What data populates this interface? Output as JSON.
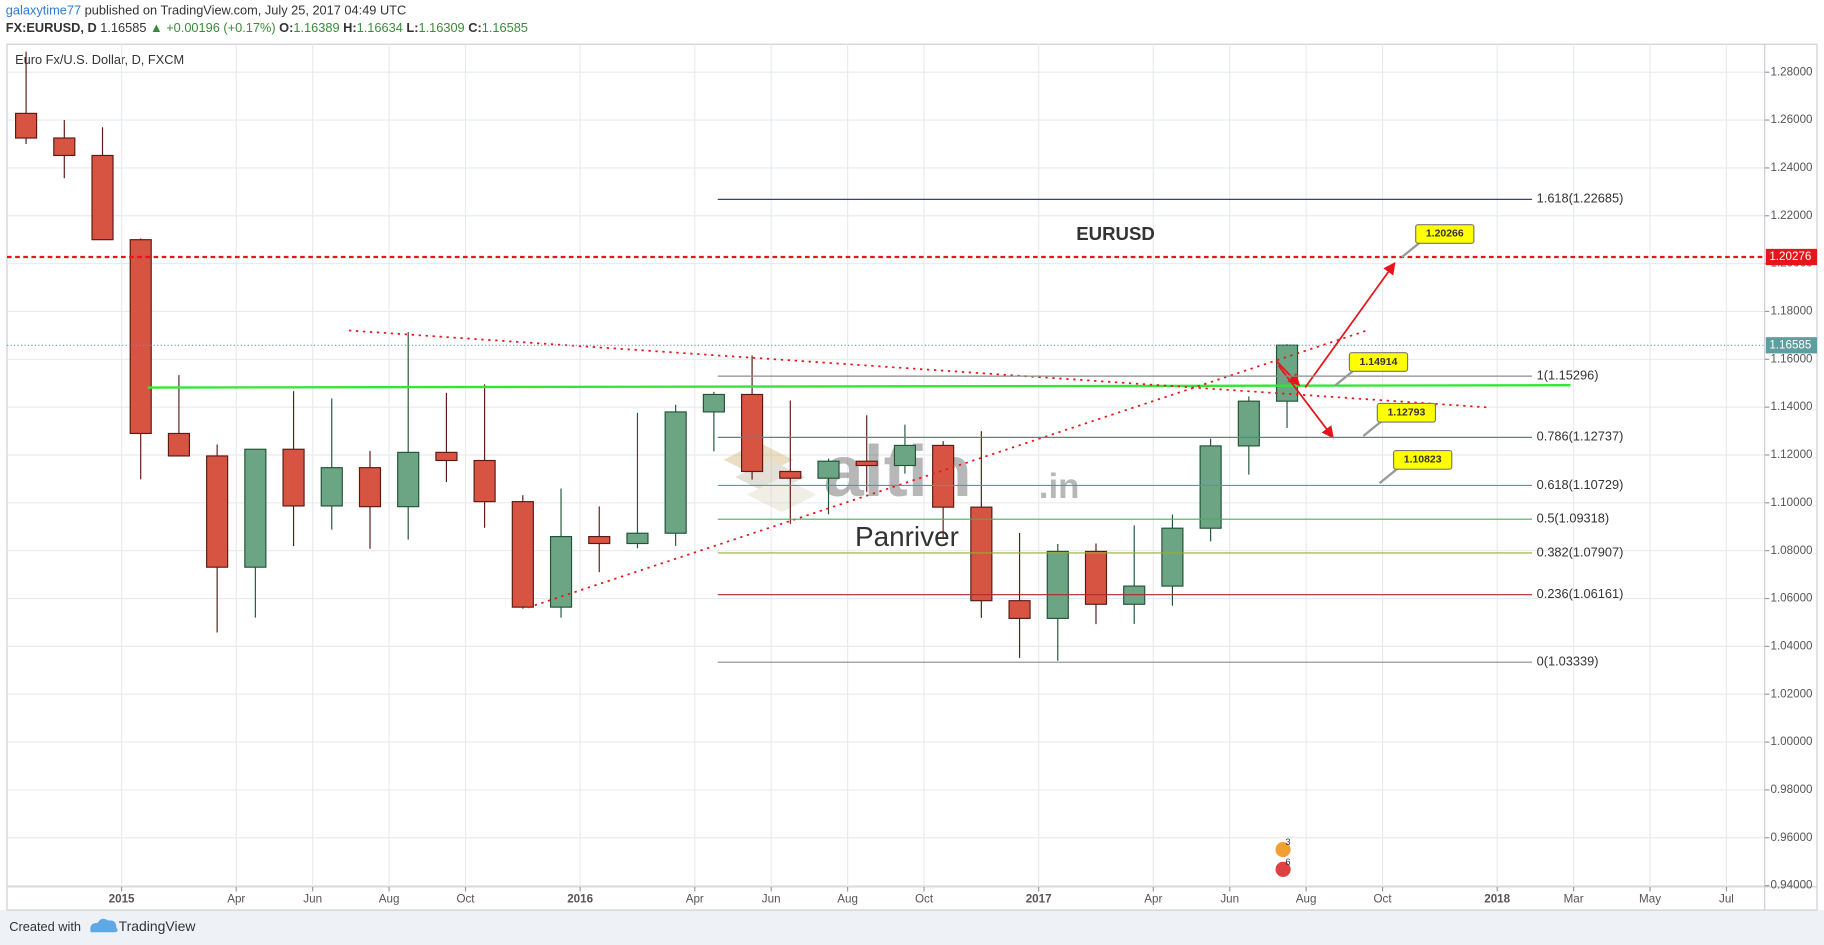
{
  "header": {
    "author": "galaxytime77",
    "published": "published on TradingView.com, July 25, 2017 04:49 UTC",
    "symbol": "FX:EURUSD, D",
    "last": "1.16585",
    "change": "▲ +0.00196 (+0.17%)",
    "ohlc": [
      {
        "key": "O:",
        "value": "1.16389"
      },
      {
        "key": "H:",
        "value": "1.16634"
      },
      {
        "key": "L:",
        "value": "1.16309"
      },
      {
        "key": "C:",
        "value": "1.16585"
      }
    ]
  },
  "chart_data": {
    "type": "candlestick",
    "title": "EURUSD",
    "instrument": "Euro Fx/U.S. Dollar, D, FXCM",
    "x": [
      "2014-10",
      "2014-11",
      "2014-12",
      "2015-01",
      "2015-02",
      "2015-03",
      "2015-04",
      "2015-05",
      "2015-06",
      "2015-07",
      "2015-08",
      "2015-09",
      "2015-10",
      "2015-11",
      "2015-12",
      "2016-01",
      "2016-02",
      "2016-03",
      "2016-04",
      "2016-05",
      "2016-06",
      "2016-07",
      "2016-08",
      "2016-09",
      "2016-10",
      "2016-11",
      "2016-12",
      "2017-01",
      "2017-02",
      "2017-03",
      "2017-04",
      "2017-05",
      "2017-06",
      "2017-07"
    ],
    "open": [
      1.2628,
      1.2525,
      1.2452,
      1.21,
      1.129,
      1.1196,
      1.0731,
      1.1224,
      1.0987,
      1.1147,
      1.0984,
      1.1211,
      1.1177,
      1.1005,
      1.0564,
      1.0859,
      1.083,
      1.0873,
      1.138,
      1.1453,
      1.1131,
      1.1103,
      1.1174,
      1.1156,
      1.124,
      1.0982,
      1.0591,
      1.0517,
      1.0797,
      1.0576,
      1.0652,
      1.0894,
      1.1238,
      1.1425
    ],
    "high": [
      1.2886,
      1.26,
      1.257,
      1.2105,
      1.1534,
      1.1244,
      1.1215,
      1.1467,
      1.1436,
      1.1217,
      1.1714,
      1.146,
      1.1495,
      1.1032,
      1.106,
      1.0985,
      1.1376,
      1.141,
      1.1464,
      1.1616,
      1.1428,
      1.1185,
      1.1366,
      1.1327,
      1.1258,
      1.13,
      1.0874,
      1.0828,
      1.083,
      1.0906,
      1.0951,
      1.1268,
      1.1445,
      1.1663
    ],
    "low": [
      1.25,
      1.2357,
      1.21,
      1.1098,
      1.12,
      1.0458,
      1.052,
      1.0819,
      1.0888,
      1.0808,
      1.0846,
      1.1087,
      1.0896,
      1.0558,
      1.052,
      1.071,
      1.081,
      1.082,
      1.1215,
      1.1097,
      1.0912,
      1.0952,
      1.1046,
      1.1122,
      1.0852,
      1.0519,
      1.0352,
      1.034,
      1.0493,
      1.0494,
      1.057,
      1.0839,
      1.1118,
      1.1313
    ],
    "close": [
      1.2525,
      1.2452,
      1.21,
      1.129,
      1.1196,
      1.0731,
      1.1224,
      1.0987,
      1.1147,
      1.0984,
      1.1211,
      1.1177,
      1.1005,
      1.0564,
      1.0859,
      1.083,
      1.0873,
      1.138,
      1.1453,
      1.1131,
      1.1103,
      1.1174,
      1.1156,
      1.124,
      1.0982,
      1.0591,
      1.0517,
      1.0797,
      1.0576,
      1.0652,
      1.0894,
      1.1238,
      1.1425,
      1.1659
    ],
    "up_color": "#6ba583",
    "down_color": "#d75442",
    "xlim": [
      "2014-10",
      "2018-08"
    ],
    "xticks": [
      {
        "value": "2015-01",
        "label": "2015"
      },
      {
        "value": "2015-04",
        "label": "Apr"
      },
      {
        "value": "2015-06",
        "label": "Jun"
      },
      {
        "value": "2015-08",
        "label": "Aug"
      },
      {
        "value": "2015-10",
        "label": "Oct"
      },
      {
        "value": "2016-01",
        "label": "2016"
      },
      {
        "value": "2016-04",
        "label": "Apr"
      },
      {
        "value": "2016-06",
        "label": "Jun"
      },
      {
        "value": "2016-08",
        "label": "Aug"
      },
      {
        "value": "2016-10",
        "label": "Oct"
      },
      {
        "value": "2017-01",
        "label": "2017"
      },
      {
        "value": "2017-04",
        "label": "Apr"
      },
      {
        "value": "2017-06",
        "label": "Jun"
      },
      {
        "value": "2017-08",
        "label": "Aug"
      },
      {
        "value": "2017-10",
        "label": "Oct"
      },
      {
        "value": "2018-01",
        "label": "2018"
      },
      {
        "value": "2018-03",
        "label": "Mar"
      },
      {
        "value": "2018-05",
        "label": "May"
      },
      {
        "value": "2018-07",
        "label": "Jul"
      }
    ],
    "ylim": [
      0.9395,
      1.2917
    ],
    "yticks": [
      {
        "value": 0.94,
        "label": "0.94000"
      },
      {
        "value": 0.96,
        "label": "0.96000"
      },
      {
        "value": 0.98,
        "label": "0.98000"
      },
      {
        "value": 1.0,
        "label": "1.00000"
      },
      {
        "value": 1.02,
        "label": "1.02000"
      },
      {
        "value": 1.04,
        "label": "1.04000"
      },
      {
        "value": 1.06,
        "label": "1.06000"
      },
      {
        "value": 1.08,
        "label": "1.08000"
      },
      {
        "value": 1.1,
        "label": "1.10000"
      },
      {
        "value": 1.12,
        "label": "1.12000"
      },
      {
        "value": 1.14,
        "label": "1.14000"
      },
      {
        "value": 1.16,
        "label": "1.16000"
      },
      {
        "value": 1.18,
        "label": "1.18000"
      },
      {
        "value": 1.2,
        "label": "1.20000"
      },
      {
        "value": 1.22,
        "label": "1.22000"
      },
      {
        "value": 1.24,
        "label": "1.24000"
      },
      {
        "value": 1.26,
        "label": "1.26000"
      },
      {
        "value": 1.28,
        "label": "1.28000"
      }
    ],
    "grid": true,
    "last_price": 1.16585,
    "resistance": 1.20276,
    "fibonacci": [
      {
        "label": "1.618(1.22685)",
        "value": 1.22685,
        "color": "#3c3c8c"
      },
      {
        "label": "1(1.15296)",
        "value": 1.15296,
        "color": "#8c8c8c"
      },
      {
        "label": "0.786(1.12737)",
        "value": 1.12737,
        "color": "#4a86a8"
      },
      {
        "label": "0.618(1.10729)",
        "value": 1.10729,
        "color": "#3aa89a"
      },
      {
        "label": "0.5(1.09318)",
        "value": 1.09318,
        "color": "#4caf50"
      },
      {
        "label": "0.382(1.07907)",
        "value": 1.07907,
        "color": "#9aac3a"
      },
      {
        "label": "0.236(1.06161)",
        "value": 1.06161,
        "color": "#b02a2a"
      },
      {
        "label": "0(1.03339)",
        "value": 1.03339,
        "color": "#8c8c8c"
      }
    ],
    "callouts": [
      1.20266,
      1.14914,
      1.12793,
      1.10823
    ],
    "watermark": {
      "brand": "altin",
      "suffix": ".in",
      "author": "Panriver"
    },
    "events": [
      "3",
      "6"
    ]
  },
  "footer": {
    "created": "Created with",
    "brand": "TradingView"
  }
}
